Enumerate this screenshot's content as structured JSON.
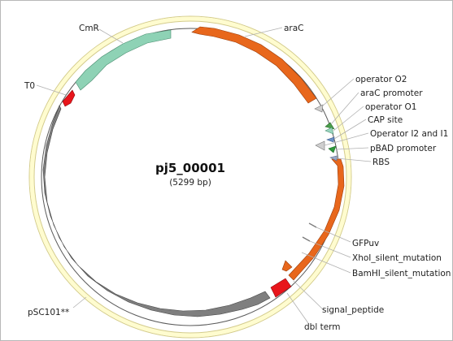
{
  "plasmid": {
    "name": "pj5_00001",
    "size_label": "(5299 bp)",
    "length_bp": 5299
  },
  "colors": {
    "orange": "#e8671c",
    "green": "#8ed2b5",
    "grey": "#7f7f7f",
    "red": "#e8151b",
    "ring_fill": "#fffccf",
    "ring_stroke": "#d4cc8a"
  },
  "features": [
    {
      "id": "arac",
      "label": "araC"
    },
    {
      "id": "cmr",
      "label": "CmR"
    },
    {
      "id": "t0",
      "label": "T0"
    },
    {
      "id": "psc101",
      "label": "pSC101**"
    },
    {
      "id": "dblterm",
      "label": "dbl term"
    },
    {
      "id": "signal",
      "label": "signal_peptide"
    },
    {
      "id": "gfpuv",
      "label": "GFPuv"
    },
    {
      "id": "xhoi",
      "label": "XhoI_silent_mutation"
    },
    {
      "id": "bamhi",
      "label": "BamHI_silent_mutation"
    },
    {
      "id": "rbs",
      "label": "RBS"
    },
    {
      "id": "pbad",
      "label": "pBAD promoter"
    },
    {
      "id": "opi2i1",
      "label": "Operator I2 and I1"
    },
    {
      "id": "cap",
      "label": "CAP site"
    },
    {
      "id": "opo1",
      "label": "operator O1"
    },
    {
      "id": "arapro",
      "label": "araC promoter"
    },
    {
      "id": "opo2",
      "label": "operator O2"
    }
  ]
}
